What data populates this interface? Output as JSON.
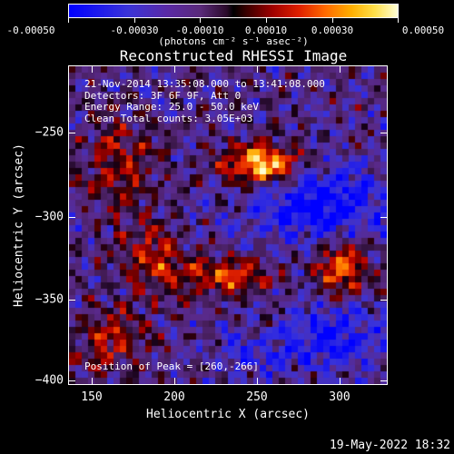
{
  "colorbar": {
    "tick_labels": [
      "-0.00050",
      "-0.00030",
      "-0.00010",
      "0.00010",
      "0.00030",
      "0.00050"
    ],
    "units_label": "(photons cm⁻² s⁻¹ asec⁻²)",
    "range": [
      -0.0005,
      0.0005
    ]
  },
  "plot": {
    "title": "Reconstructed RHESSI Image",
    "annotations": {
      "time_range": "21-Nov-2014 13:35:08.000 to 13:41:08.000",
      "detectors": "Detectors: 3F 6F 9F, Att 0",
      "energy_range": "Energy Range: 25.0 - 50.0 keV",
      "method": "Clean     Total counts: 3.05E+03",
      "peak": "Position of Peak = [260,-266]"
    }
  },
  "axes": {
    "xlabel": "Heliocentric X (arcsec)",
    "ylabel": "Heliocentric Y (arcsec)",
    "x_range": [
      136,
      330
    ],
    "y_range": [
      -404,
      -210
    ],
    "x_ticks": [
      150,
      200,
      250,
      300
    ],
    "y_ticks": [
      -250,
      -300,
      -350,
      -400
    ],
    "x_tick_labels": [
      "150",
      "200",
      "250",
      "300"
    ],
    "y_tick_labels": [
      "−250",
      "−300",
      "−350",
      "−400"
    ]
  },
  "footer": {
    "timestamp": "19-May-2022 18:32"
  }
}
